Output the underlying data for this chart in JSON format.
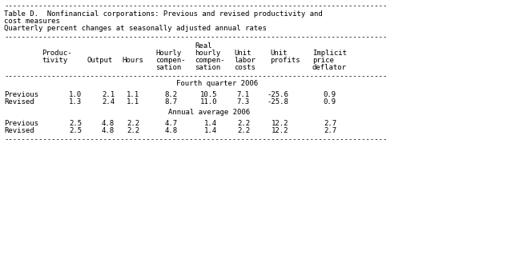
{
  "title_line1": "Table D.  Nonfinancial corporations: Previous and revised productivity and",
  "title_line2": "cost measures",
  "title_line3": "Quarterly percent changes at seasonally adjusted annual rates",
  "section1_title": "Fourth quarter 2006",
  "section1_rows": [
    [
      "Previous",
      "1.0",
      "2.1",
      "1.1",
      "8.2",
      "10.5",
      "7.1",
      "-25.6",
      "0.9"
    ],
    [
      "Revised",
      "1.3",
      "2.4",
      "1.1",
      "8.7",
      "11.0",
      "7.3",
      "-25.8",
      "0.9"
    ]
  ],
  "section2_title": "Annual average 2006",
  "section2_rows": [
    [
      "Previous",
      "2.5",
      "4.8",
      "2.2",
      "4.7",
      "1.4",
      "2.2",
      "12.2",
      "2.7"
    ],
    [
      "Revised",
      "2.5",
      "4.8",
      "2.2",
      "4.8",
      "1.4",
      "2.2",
      "12.2",
      "2.7"
    ]
  ],
  "dash_line": "-----------------------------------------------------------------------------------------",
  "bg_color": "#ffffff",
  "text_color": "#000000",
  "font_size": 6.5,
  "font_family": "monospace",
  "fig_width": 6.33,
  "fig_height": 3.24,
  "dpi": 100
}
